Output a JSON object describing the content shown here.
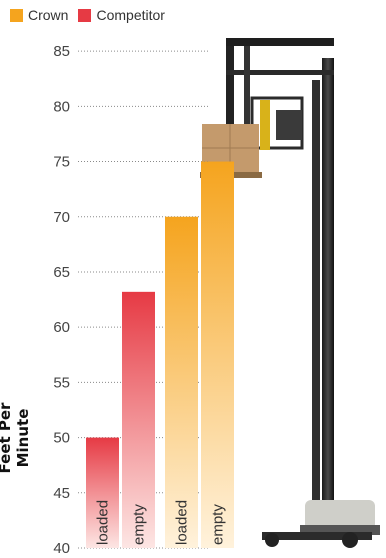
{
  "legend": {
    "crown": {
      "label": "Crown",
      "color": "#f5a41e"
    },
    "competitor": {
      "label": "Competitor",
      "color": "#e63a44"
    }
  },
  "chart_data": {
    "type": "bar",
    "ylabel": "Feet Per Minute",
    "ylim": [
      40,
      88
    ],
    "yticks": [
      40,
      45,
      50,
      55,
      60,
      65,
      70,
      75,
      80,
      85
    ],
    "categories": [
      "loaded",
      "empty",
      "loaded",
      "empty"
    ],
    "series": [
      {
        "name": "Competitor",
        "values": [
          50,
          63.2,
          null,
          null
        ],
        "color": "#e63a44"
      },
      {
        "name": "Crown",
        "values": [
          null,
          null,
          70,
          75
        ],
        "color": "#f5a41e"
      }
    ],
    "grid": "dotted horizontal",
    "legend_position": "top-left"
  },
  "truck": {
    "icon": "reach-truck-illustration",
    "load_icon": "pallet-boxes-icon"
  }
}
